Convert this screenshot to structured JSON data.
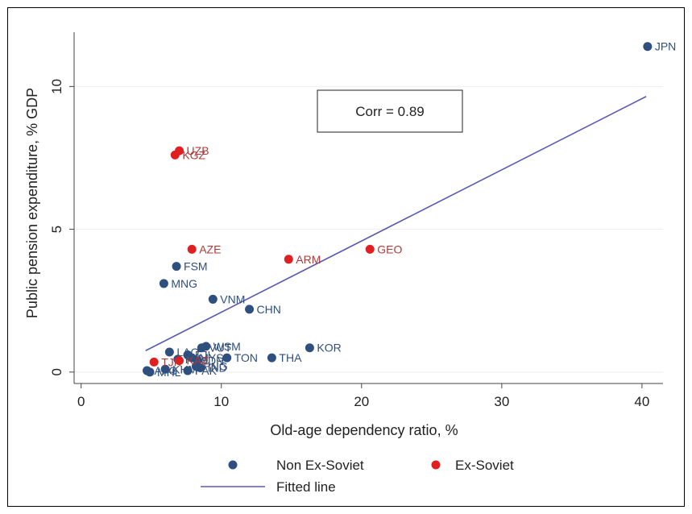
{
  "chart_data": {
    "type": "scatter",
    "xlabel": "Old-age dependency ratio, %",
    "ylabel": "Public pension expenditure, % GDP",
    "xlim": [
      -0.5,
      41.5
    ],
    "ylim": [
      -0.4,
      11.9
    ],
    "x_ticks": [
      0,
      10,
      20,
      30,
      40
    ],
    "y_ticks": [
      0,
      5,
      10
    ],
    "grid": "horizontal",
    "annotation": "Corr = 0.89",
    "legend_position": "bottom",
    "legend": [
      {
        "label": "Non Ex-Soviet",
        "kind": "marker",
        "color": "#2f4f7f"
      },
      {
        "label": "Ex-Soviet",
        "kind": "marker",
        "color": "#e02020"
      },
      {
        "label": "Fitted line",
        "kind": "line",
        "color": "#5a5ab4"
      }
    ],
    "fitted_line": {
      "x": [
        4.6,
        40.3
      ],
      "y": [
        0.75,
        9.65
      ]
    },
    "series": [
      {
        "name": "Non Ex-Soviet",
        "color": "#2f4f7f",
        "label_color": "#2f4f7f",
        "points": [
          {
            "label": "JPN",
            "x": 40.4,
            "y": 11.4
          },
          {
            "label": "FSM",
            "x": 6.8,
            "y": 3.7
          },
          {
            "label": "MNG",
            "x": 5.9,
            "y": 3.1
          },
          {
            "label": "VNM",
            "x": 9.4,
            "y": 2.55
          },
          {
            "label": "CHN",
            "x": 12.0,
            "y": 2.2
          },
          {
            "label": "KOR",
            "x": 16.3,
            "y": 0.85
          },
          {
            "label": "THA",
            "x": 13.6,
            "y": 0.5
          },
          {
            "label": "TON",
            "x": 10.4,
            "y": 0.5
          },
          {
            "label": "WSM",
            "x": 8.9,
            "y": 0.9
          },
          {
            "label": "VUT",
            "x": 8.6,
            "y": 0.85
          },
          {
            "label": "LAO",
            "x": 6.3,
            "y": 0.7
          },
          {
            "label": "FJI",
            "x": 7.6,
            "y": 0.6
          },
          {
            "label": "IDN",
            "x": 8.3,
            "y": 0.4
          },
          {
            "label": "MYS",
            "x": 7.9,
            "y": 0.5
          },
          {
            "label": "PHL",
            "x": 6.9,
            "y": 0.45
          },
          {
            "label": "PNG",
            "x": 8.2,
            "y": 0.2
          },
          {
            "label": "IND",
            "x": 8.5,
            "y": 0.15
          },
          {
            "label": "PAK",
            "x": 7.6,
            "y": 0.05
          },
          {
            "label": "KHM",
            "x": 6.0,
            "y": 0.1
          },
          {
            "label": "AFG",
            "x": 4.7,
            "y": 0.05
          },
          {
            "label": "MHL",
            "x": 4.9,
            "y": 0.0
          }
        ]
      },
      {
        "name": "Ex-Soviet",
        "color": "#e02020",
        "label_color": "#b03a3a",
        "points": [
          {
            "label": "UZB",
            "x": 7.0,
            "y": 7.75
          },
          {
            "label": "KGZ",
            "x": 6.7,
            "y": 7.6
          },
          {
            "label": "AZE",
            "x": 7.9,
            "y": 4.3
          },
          {
            "label": "ARM",
            "x": 14.8,
            "y": 3.95
          },
          {
            "label": "GEO",
            "x": 20.6,
            "y": 4.3
          },
          {
            "label": "TJK",
            "x": 5.2,
            "y": 0.35
          },
          {
            "label": "KAZ",
            "x": 7.0,
            "y": 0.4
          }
        ]
      }
    ]
  }
}
